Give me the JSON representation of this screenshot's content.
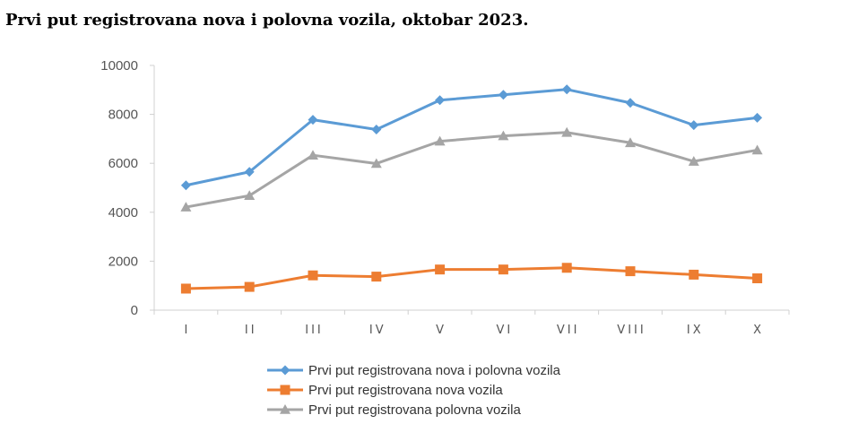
{
  "title": "Prvi put registrovana nova i polovna vozila, oktobar 2023.",
  "chart_data": {
    "type": "line",
    "categories": [
      "I",
      "II",
      "III",
      "IV",
      "V",
      "VI",
      "VII",
      "VIII",
      "IX",
      "X"
    ],
    "ylim": [
      0,
      10000
    ],
    "yticks": [
      0,
      2000,
      4000,
      6000,
      8000,
      10000
    ],
    "grid": false,
    "legend_position": "bottom",
    "series": [
      {
        "name": "Prvi put registrovana nova i polovna vozila",
        "color": "#5b9bd5",
        "marker": "diamond",
        "values": [
          5100,
          5650,
          7780,
          7380,
          8580,
          8800,
          9020,
          8470,
          7560,
          7860
        ]
      },
      {
        "name": "Prvi put registrovana nova vozila",
        "color": "#ed7d31",
        "marker": "square",
        "values": [
          880,
          950,
          1420,
          1370,
          1660,
          1660,
          1730,
          1590,
          1450,
          1300
        ]
      },
      {
        "name": "Prvi put registrovana polovna vozila",
        "color": "#a5a5a5",
        "marker": "triangle",
        "values": [
          4210,
          4680,
          6330,
          5990,
          6900,
          7120,
          7260,
          6840,
          6080,
          6540
        ]
      }
    ]
  }
}
